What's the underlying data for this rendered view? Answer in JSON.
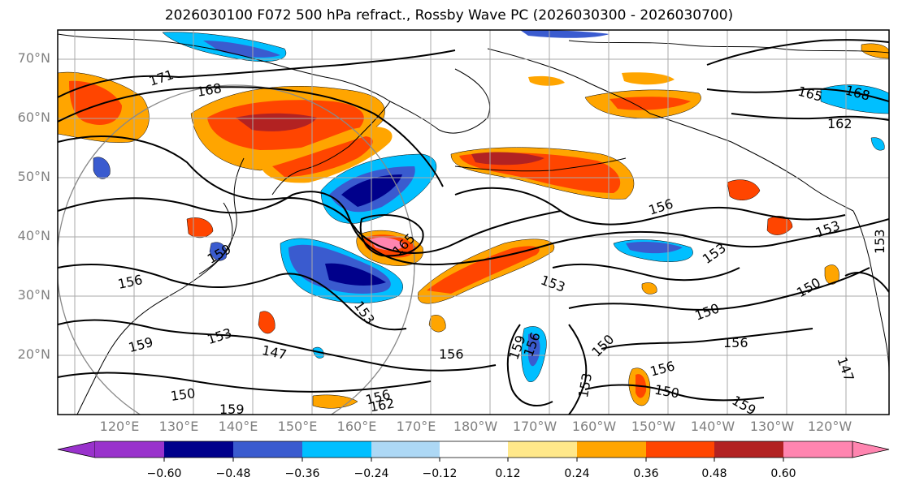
{
  "title": "2026030100 F072 500 hPa refract., Rossby Wave PC (2026030300 - 2026030700)",
  "lat_labels": [
    "70°N",
    "60°N",
    "50°N",
    "40°N",
    "30°N",
    "20°N"
  ],
  "lon_labels": [
    "120°E",
    "130°E",
    "140°E",
    "150°E",
    "160°E",
    "170°E",
    "180°W",
    "170°W",
    "160°W",
    "150°W",
    "140°W",
    "130°W",
    "120°W"
  ],
  "contour_labels": [
    "171",
    "168",
    "165",
    "168",
    "162",
    "159",
    "159",
    "156",
    "156",
    "156",
    "156",
    "153",
    "153",
    "153",
    "153",
    "153",
    "153",
    "150",
    "150",
    "150",
    "150",
    "150",
    "147",
    "147",
    "162",
    "165",
    "156",
    "159",
    "159",
    "156",
    "156",
    "153",
    "159"
  ],
  "colorbar": {
    "ticks": [
      "−0.60",
      "−0.48",
      "−0.36",
      "−0.24",
      "−0.12",
      "0.12",
      "0.24",
      "0.36",
      "0.48",
      "0.60"
    ],
    "colors": [
      "#9932cc",
      "#00008b",
      "#3a5bcf",
      "#00bfff",
      "#add8f5",
      "#ffffff",
      "#ffe88a",
      "#ffa500",
      "#ff4500",
      "#b22222",
      "#ff85b0"
    ]
  },
  "colors": {
    "grid": "#aaaaaa",
    "coast": "#000000",
    "axis_text": "#808080"
  }
}
